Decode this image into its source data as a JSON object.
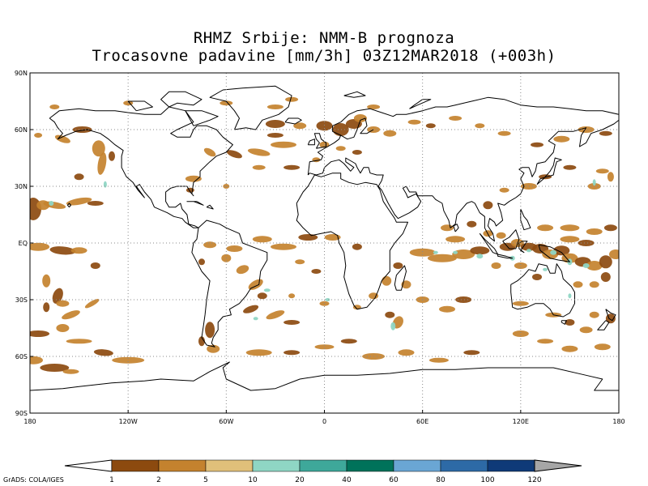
{
  "header": {
    "line1": "RHMZ Srbije: NMM-B prognoza",
    "line2": "Trocasovne padavine [mm/3h] 03Z12MAR2018 (+003h)"
  },
  "map": {
    "projection": "latlon",
    "lon_range": [
      -180,
      180
    ],
    "lat_range": [
      -90,
      90
    ],
    "grid": "dotted",
    "lat_labels": [
      {
        "lat": 90,
        "text": "90N"
      },
      {
        "lat": 60,
        "text": "60N"
      },
      {
        "lat": 30,
        "text": "30N"
      },
      {
        "lat": 0,
        "text": "EQ"
      },
      {
        "lat": -30,
        "text": "30S"
      },
      {
        "lat": -60,
        "text": "60S"
      },
      {
        "lat": -90,
        "text": "90S"
      }
    ],
    "lon_labels": [
      {
        "lon": -180,
        "text": "180"
      },
      {
        "lon": -120,
        "text": "120W"
      },
      {
        "lon": -60,
        "text": "60W"
      },
      {
        "lon": 0,
        "text": "0"
      },
      {
        "lon": 60,
        "text": "60E"
      },
      {
        "lon": 120,
        "text": "120E"
      },
      {
        "lon": 180,
        "text": "180"
      }
    ]
  },
  "colorbar": {
    "levels": [
      "1",
      "2",
      "5",
      "10",
      "20",
      "40",
      "60",
      "80",
      "100",
      "120"
    ],
    "colors": [
      "#8c4a0f",
      "#c4822e",
      "#e0c07a",
      "#8fd6c4",
      "#3ea89a",
      "#00725a",
      "#6aa6d4",
      "#2d6aa6",
      "#0f3a78",
      "#a6a6a6"
    ]
  },
  "credit": "GrADS: COLA/IGES"
}
